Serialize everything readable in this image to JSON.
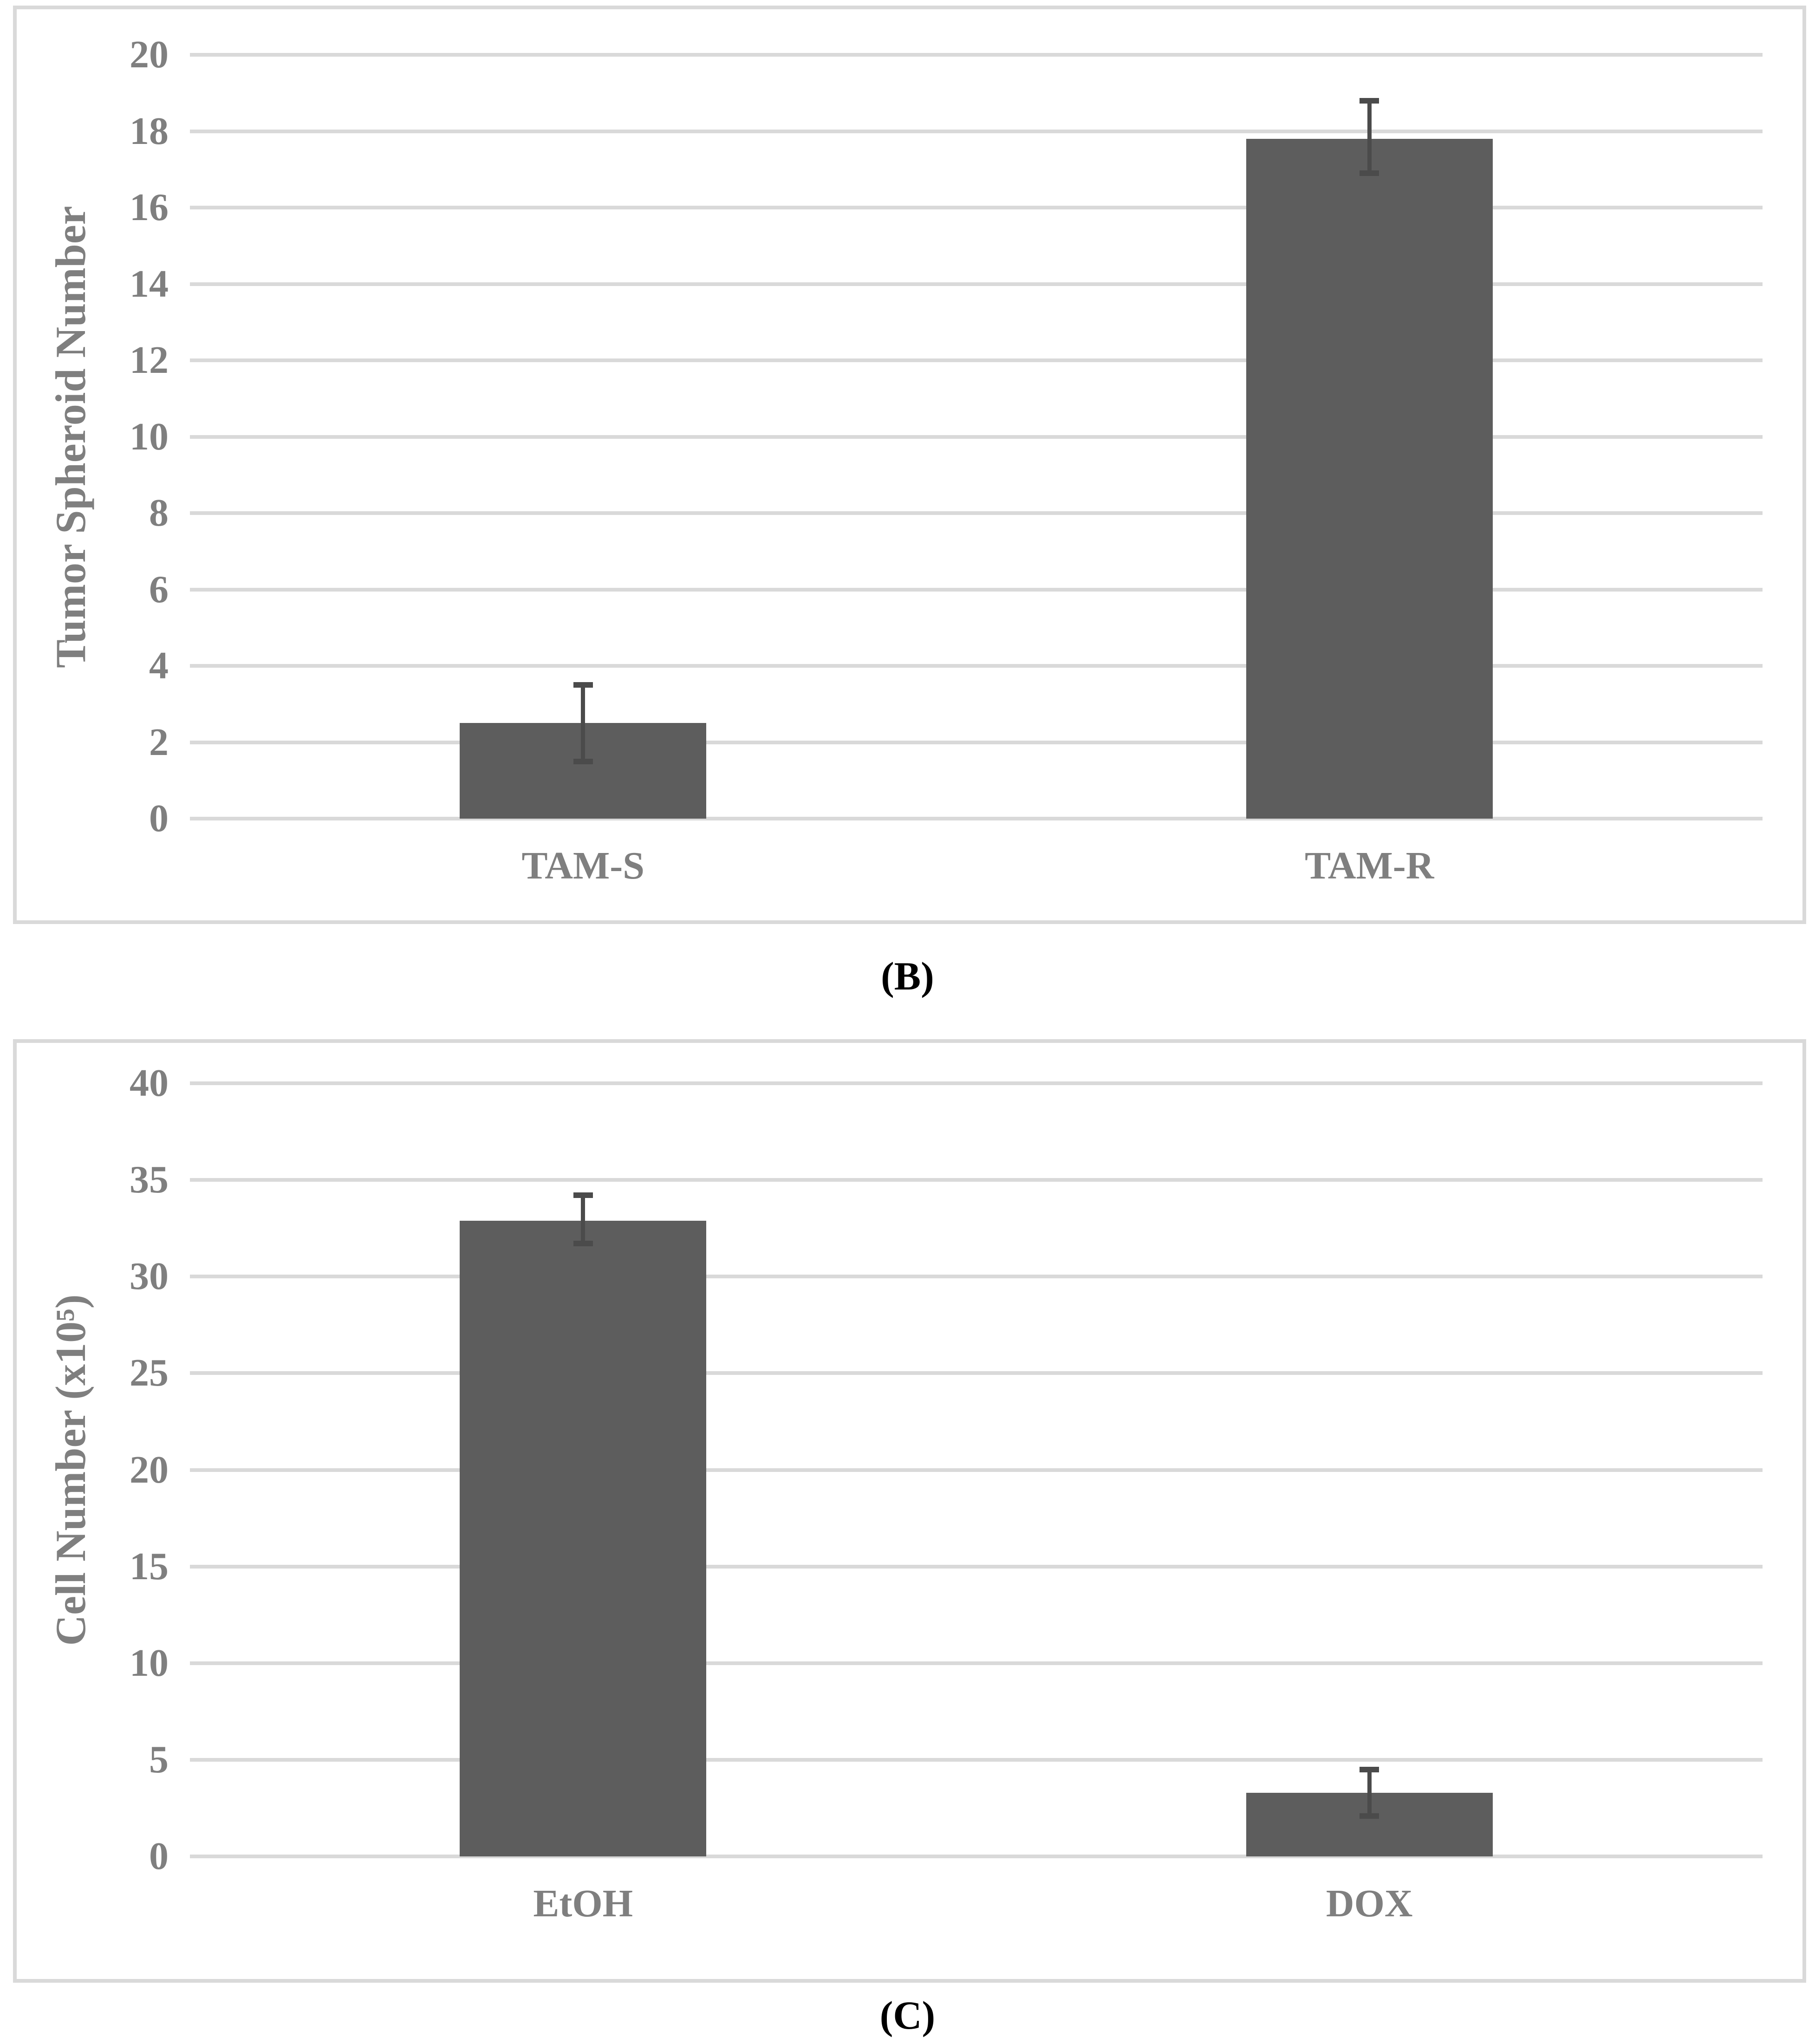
{
  "figure": {
    "captions": [
      "(B)",
      "(C)"
    ]
  },
  "colors": {
    "bar": "#5d5d5d",
    "error_bar": "#4b4b4b",
    "gridline": "#d9d9d9",
    "panel_border": "#d9d9d9",
    "axis_text": "#7f7f7f",
    "caption_text": "#000000",
    "background": "#ffffff"
  },
  "chart_data": [
    {
      "type": "bar",
      "panel": "B",
      "title": "",
      "xlabel": "",
      "ylabel": "Tumor Spheroid Number",
      "categories": [
        "TAM-S",
        "TAM-R"
      ],
      "values": [
        2.5,
        17.8
      ],
      "error_low": [
        1.5,
        16.9
      ],
      "error_high": [
        3.5,
        18.8
      ],
      "ylim": [
        0,
        20
      ],
      "yticks": [
        0,
        2,
        4,
        6,
        8,
        10,
        12,
        14,
        16,
        18,
        20
      ],
      "grid": true,
      "legend": false
    },
    {
      "type": "bar",
      "panel": "C",
      "title": "",
      "xlabel": "",
      "ylabel": "Cell Number (x10⁵)",
      "categories": [
        "EtOH",
        "DOX"
      ],
      "values": [
        32.9,
        3.3
      ],
      "error_low": [
        31.7,
        2.1
      ],
      "error_high": [
        34.2,
        4.5
      ],
      "ylim": [
        0,
        40
      ],
      "yticks": [
        0,
        5,
        10,
        15,
        20,
        25,
        30,
        35,
        40
      ],
      "grid": true,
      "legend": false
    }
  ]
}
